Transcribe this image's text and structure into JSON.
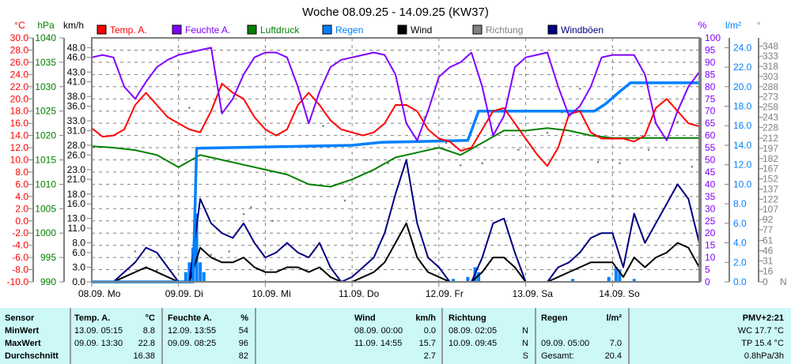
{
  "title": "Woche 08.09.25 - 14.09.25 (KW37)",
  "legend": [
    {
      "label": "Temp. A.",
      "color": "#ff0000"
    },
    {
      "label": "Feuchte A.",
      "color": "#8000ff"
    },
    {
      "label": "Luftdruck",
      "color": "#008000"
    },
    {
      "label": "Regen",
      "color": "#0080ff"
    },
    {
      "label": "Wind",
      "color": "#000000"
    },
    {
      "label": "Richtung",
      "color": "#808080"
    },
    {
      "label": "Windböen",
      "color": "#000080"
    }
  ],
  "axes": {
    "temp": {
      "unit": "°C",
      "ticks": [
        -10,
        -8,
        -6,
        -4,
        -2,
        0,
        2,
        4,
        6,
        8,
        10,
        12,
        14,
        16,
        18,
        20,
        22,
        24,
        26,
        28,
        30
      ],
      "color": "#ff0000"
    },
    "pressure": {
      "unit": "hPa",
      "ticks": [
        990,
        995,
        1000,
        1005,
        1010,
        1015,
        1020,
        1025,
        1030,
        1035,
        1040
      ],
      "color": "#008000"
    },
    "wind": {
      "unit": "km/h",
      "ticks": [
        0,
        3,
        6,
        8,
        11,
        13,
        16,
        18,
        21,
        23,
        26,
        28,
        31,
        33,
        36,
        38,
        41,
        43,
        46,
        48
      ],
      "color": "#000000"
    },
    "humidity": {
      "unit": "%",
      "ticks": [
        0,
        5,
        10,
        15,
        20,
        25,
        30,
        35,
        40,
        45,
        50,
        55,
        60,
        65,
        70,
        75,
        80,
        85,
        90,
        95,
        100
      ],
      "color": "#8000ff"
    },
    "rain": {
      "unit": "l/m²",
      "ticks": [
        0,
        2,
        4,
        6,
        8,
        10,
        12,
        14,
        16,
        18,
        20,
        22,
        24
      ],
      "color": "#0080ff"
    },
    "direction": {
      "unit": "°",
      "ticks": [
        0,
        16,
        31,
        46,
        61,
        77,
        92,
        107,
        122,
        137,
        152,
        167,
        182,
        197,
        212,
        228,
        243,
        258,
        273,
        288,
        303,
        318,
        333,
        348
      ],
      "zero_label": "N",
      "color": "#808080"
    }
  },
  "chart_data": {
    "type": "line",
    "title": "Woche 08.09.25 - 14.09.25 (KW37)",
    "x_unit": "hours since 08.09. 00:00",
    "xlim": [
      0,
      168
    ],
    "days": [
      "08.09.  Mo",
      "09.09.  Di",
      "10.09.  Mi",
      "11.09.  Do",
      "12.09.  Fr",
      "13.09.  Sa",
      "14.09.  So"
    ],
    "sample_step_hours": 3,
    "series": [
      {
        "name": "Temp. A.",
        "axis": "temp",
        "ylim": [
          -10,
          30
        ],
        "values": [
          15.2,
          13.8,
          14,
          15,
          19,
          21,
          19,
          17,
          16,
          15,
          14.5,
          18,
          22.5,
          21,
          20,
          17,
          15,
          14,
          15,
          19,
          21,
          19,
          16.5,
          15,
          14.5,
          14,
          14.5,
          16,
          19,
          19,
          18,
          15,
          13.5,
          13,
          11.5,
          12,
          15,
          18,
          18.5,
          16,
          13.5,
          11,
          9,
          12,
          17.5,
          18,
          14.5,
          13.5,
          13.5,
          13.5,
          13,
          14,
          18.5,
          20,
          18,
          16,
          15.5
        ]
      },
      {
        "name": "Feuchte A.",
        "axis": "humidity",
        "ylim": [
          0,
          100
        ],
        "values": [
          92,
          93,
          92,
          80,
          75,
          82,
          88,
          91,
          93,
          94,
          95,
          96,
          69,
          75,
          85,
          92,
          94,
          94,
          92,
          80,
          65,
          78,
          88,
          91,
          92,
          93,
          94,
          93,
          85,
          65,
          58,
          70,
          84,
          88,
          90,
          94,
          80,
          60,
          68,
          88,
          92,
          93,
          94,
          80,
          68,
          72,
          80,
          92,
          93,
          93,
          93,
          85,
          65,
          58,
          70,
          80,
          86
        ]
      },
      {
        "name": "Luftdruck",
        "axis": "pressure",
        "ylim": [
          990,
          1040
        ],
        "step_hours": 6,
        "values": [
          1017.8,
          1017.5,
          1017,
          1016,
          1013.5,
          1016,
          1015,
          1014,
          1013,
          1012,
          1010,
          1009.5,
          1011,
          1013,
          1015.5,
          1016.5,
          1017.5,
          1016,
          1018.5,
          1021,
          1021,
          1021.5,
          1021,
          1020,
          1019.5,
          1019.5,
          1019.5,
          1019.5,
          1019.5
        ]
      },
      {
        "name": "Wind",
        "axis": "wind",
        "ylim": [
          0,
          48
        ],
        "values": [
          0,
          0,
          0,
          1,
          2,
          3,
          2,
          1,
          0,
          0,
          7,
          5,
          4,
          4,
          5,
          3,
          2,
          2,
          3,
          3,
          2,
          3,
          1,
          0,
          0,
          1,
          2,
          4,
          8,
          12,
          5,
          2,
          1,
          0,
          0,
          0,
          2,
          5,
          5,
          3,
          0,
          0,
          0,
          1,
          2,
          3,
          4,
          4,
          4,
          1,
          5,
          3,
          5,
          6,
          8,
          7,
          3
        ]
      },
      {
        "name": "Windböen",
        "axis": "wind",
        "ylim": [
          0,
          48
        ],
        "values": [
          0,
          0,
          0,
          2,
          4,
          7,
          6,
          3,
          0,
          0,
          17,
          12,
          10,
          9,
          12,
          8,
          5,
          6,
          8,
          6,
          5,
          8,
          3,
          0,
          1,
          3,
          5,
          10,
          18,
          25,
          12,
          5,
          3,
          0,
          0,
          0,
          5,
          12,
          13,
          6,
          0,
          0,
          0,
          3,
          4,
          6,
          9,
          10,
          10,
          3,
          14,
          8,
          12,
          16,
          20,
          17,
          8
        ]
      },
      {
        "name": "Regen",
        "axis": "rain",
        "ylim": [
          0,
          25
        ],
        "kind": "cumulative-step",
        "points": [
          [
            0,
            0
          ],
          [
            28,
            0
          ],
          [
            29,
            13.7
          ],
          [
            72,
            14.0
          ],
          [
            80,
            14.3
          ],
          [
            104,
            14.5
          ],
          [
            107,
            17.5
          ],
          [
            139,
            17.5
          ],
          [
            142,
            18.2
          ],
          [
            146,
            19.5
          ],
          [
            149,
            20.4
          ],
          [
            168,
            20.4
          ]
        ]
      },
      {
        "name": "Regen (Stunde)",
        "axis": "rain",
        "kind": "bars",
        "points": [
          [
            26,
            1
          ],
          [
            27,
            2
          ],
          [
            28,
            3.5
          ],
          [
            29,
            7
          ],
          [
            30,
            2
          ],
          [
            31,
            1
          ],
          [
            100,
            0.3
          ],
          [
            104,
            0.5
          ],
          [
            106,
            1.5
          ],
          [
            107,
            1
          ],
          [
            133,
            0.3
          ],
          [
            143,
            0.5
          ],
          [
            145,
            1.5
          ],
          [
            146,
            1.2
          ],
          [
            150,
            0.3
          ]
        ]
      },
      {
        "name": "Richtung",
        "axis": "direction",
        "kind": "scatter",
        "points": [
          [
            12,
            45
          ],
          [
            15,
            20
          ],
          [
            18,
            17
          ],
          [
            27,
            257
          ],
          [
            33,
            40
          ],
          [
            38,
            45
          ],
          [
            42,
            100
          ],
          [
            44,
            110
          ],
          [
            50,
            90
          ],
          [
            64,
            230
          ],
          [
            70,
            120
          ],
          [
            76,
            180
          ],
          [
            82,
            175
          ],
          [
            87,
            177
          ],
          [
            92,
            243
          ],
          [
            98,
            205
          ],
          [
            102,
            172
          ],
          [
            108,
            175
          ],
          [
            118,
            195
          ],
          [
            126,
            220
          ],
          [
            130,
            250
          ],
          [
            135,
            285
          ],
          [
            140,
            177
          ],
          [
            146,
            175
          ],
          [
            154,
            195
          ],
          [
            162,
            236
          ],
          [
            166,
            170
          ]
        ]
      }
    ]
  },
  "table": {
    "sensor": {
      "head": "Sensor",
      "rows": [
        "MinWert",
        "MaxWert",
        "Durchschnitt"
      ]
    },
    "temp": {
      "head": "Temp. A.",
      "unit": "°C",
      "min_time": "13.09.  05:15",
      "min": "8.8",
      "max_time": "09.09.  13:30",
      "max": "22.8",
      "avg": "16.38"
    },
    "hum": {
      "head": "Feuchte A.",
      "unit": "%",
      "min_time": "12.09.  13:55",
      "min": "54",
      "max_time": "09.09.  08:25",
      "max": "96",
      "avg": "82"
    },
    "wind": {
      "head": "Wind",
      "unit": "km/h",
      "min_time": "08.09.  00:00",
      "min": "0.0",
      "max_time": "11.09.  14:55",
      "max": "15.7",
      "avg": "2.7"
    },
    "dir": {
      "head": "Richtung",
      "min_time": "08.09.  02:05",
      "min": "N",
      "max_time": "10.09.  09:45",
      "max": "N",
      "avg": "S"
    },
    "rain": {
      "head": "Regen",
      "unit": "l/m²",
      "max_time": "09.09.  05:00",
      "max": "7.0",
      "total_label": "Gesamt:",
      "total": "20.4"
    },
    "extra": {
      "head": "PMV+2:21",
      "wc": "WC 17.7 °C",
      "tp": "TP 15.4 °C",
      "trend": "0.8hPa/3h"
    }
  }
}
